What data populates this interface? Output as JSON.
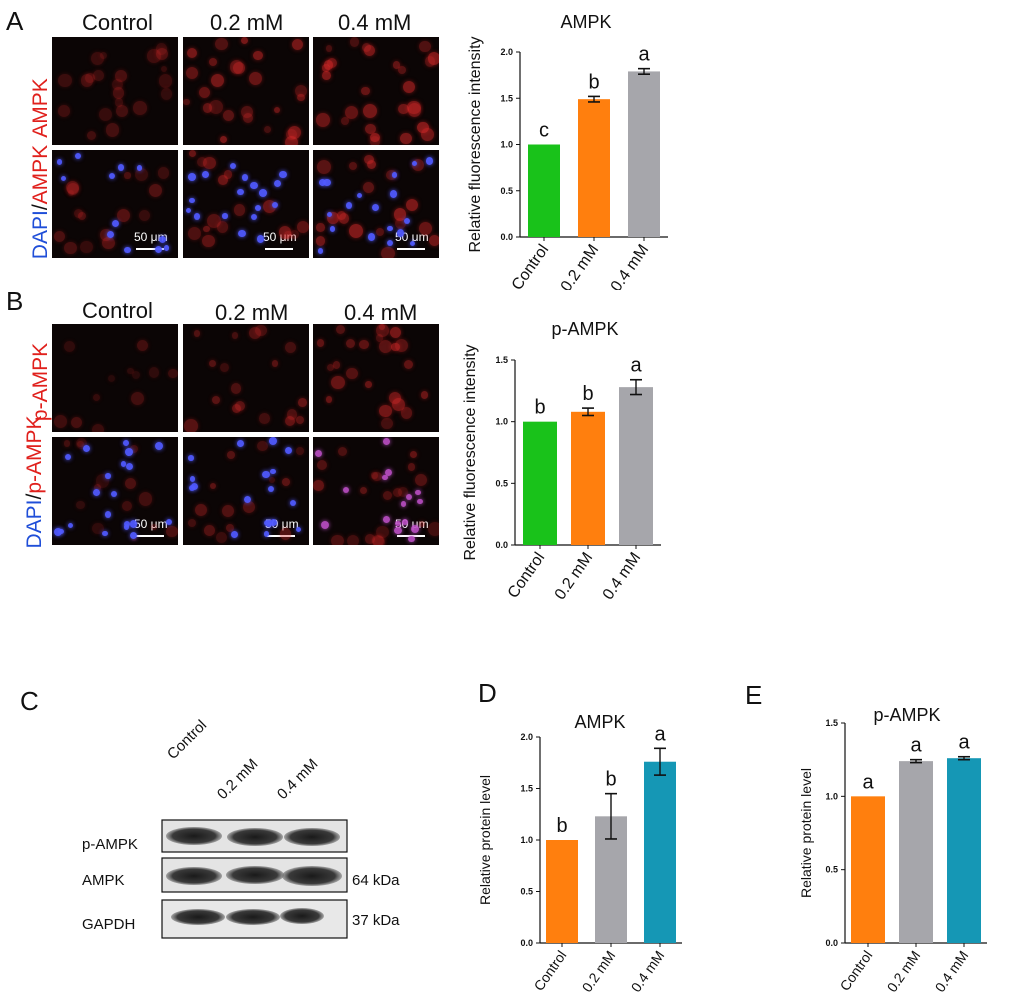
{
  "panels": {
    "A": {
      "letter": "A",
      "columns": [
        "Control",
        "0.2 mM",
        "0.4 mM"
      ],
      "row_labels": {
        "row1": {
          "text": "AMPK",
          "color": "#e0201c"
        },
        "row2_a": {
          "text": "DAPI",
          "color": "#1f4ed8"
        },
        "row2_sep": "/",
        "row2_b": {
          "text": "AMPK",
          "color": "#e0201c"
        }
      },
      "scale": "50 μm"
    },
    "B": {
      "letter": "B",
      "columns": [
        "Control",
        "0.2 mM",
        "0.4 mM"
      ],
      "row_labels": {
        "row1": {
          "text": "p-AMPK",
          "color": "#e0201c"
        },
        "row2_a": {
          "text": "DAPI",
          "color": "#1f4ed8"
        },
        "row2_sep": "/",
        "row2_b": {
          "text": "p-AMPK",
          "color": "#e0201c"
        }
      },
      "scale": "50 μm"
    },
    "C": {
      "letter": "C",
      "lanes": [
        "Control",
        "0.2 mM",
        "0.4 mM"
      ],
      "rows": [
        "p-AMPK",
        "AMPK",
        "GAPDH"
      ],
      "kda": [
        "64 kDa",
        "37 kDa"
      ]
    },
    "D": {
      "letter": "D"
    },
    "E": {
      "letter": "E"
    }
  },
  "colors": {
    "green": "#19c21a",
    "orange": "#ff7f0e",
    "gray": "#a6a6ab",
    "teal": "#1597b5",
    "black": "#000000"
  },
  "chart_data": [
    {
      "id": "chartA",
      "type": "bar",
      "title": "AMPK",
      "ylabel": "Relative fluorescence intensity",
      "categories": [
        "Control",
        "0.2 mM",
        "0.4 mM"
      ],
      "values": [
        1.0,
        1.49,
        1.79
      ],
      "errors": [
        0,
        0.03,
        0.03
      ],
      "sig_labels": [
        "c",
        "b",
        "a"
      ],
      "bar_colors": [
        "#19c21a",
        "#ff7f0e",
        "#a6a6ab"
      ],
      "ylim": [
        0,
        2.0
      ],
      "yticks": [
        "0.0",
        "0.5",
        "1.0",
        "1.5",
        "2.0"
      ],
      "ytick_values": [
        0,
        0.5,
        1.0,
        1.5,
        2.0
      ]
    },
    {
      "id": "chartB",
      "type": "bar",
      "title": "p-AMPK",
      "ylabel": "Relative fluorescence intensity",
      "categories": [
        "Control",
        "0.2 mM",
        "0.4 mM"
      ],
      "values": [
        1.0,
        1.08,
        1.28
      ],
      "errors": [
        0,
        0.03,
        0.06
      ],
      "sig_labels": [
        "b",
        "b",
        "a"
      ],
      "bar_colors": [
        "#19c21a",
        "#ff7f0e",
        "#a6a6ab"
      ],
      "ylim": [
        0,
        1.5
      ],
      "yticks": [
        "0.0",
        "0.5",
        "1.0",
        "1.5"
      ],
      "ytick_values": [
        0,
        0.5,
        1.0,
        1.5
      ]
    },
    {
      "id": "chartD",
      "type": "bar",
      "title": "AMPK",
      "ylabel": "Relative protein level",
      "categories": [
        "Control",
        "0.2 mM",
        "0.4 mM"
      ],
      "values": [
        1.0,
        1.23,
        1.76
      ],
      "errors": [
        0,
        0.22,
        0.13
      ],
      "sig_labels": [
        "b",
        "b",
        "a"
      ],
      "bar_colors": [
        "#ff7f0e",
        "#a6a6ab",
        "#1597b5"
      ],
      "ylim": [
        0,
        2.0
      ],
      "yticks": [
        "0.0",
        "0.5",
        "1.0",
        "1.5",
        "2.0"
      ],
      "ytick_values": [
        0,
        0.5,
        1.0,
        1.5,
        2.0
      ]
    },
    {
      "id": "chartE",
      "type": "bar",
      "title": "p-AMPK",
      "ylabel": "Relative protein level",
      "categories": [
        "Control",
        "0.2 mM",
        "0.4 mM"
      ],
      "values": [
        1.0,
        1.24,
        1.26
      ],
      "errors": [
        0,
        0.01,
        0.01
      ],
      "sig_labels": [
        "a",
        "a",
        "a"
      ],
      "bar_colors": [
        "#ff7f0e",
        "#a6a6ab",
        "#1597b5"
      ],
      "ylim": [
        0,
        1.5
      ],
      "yticks": [
        "0.0",
        "0.5",
        "1.0",
        "1.5"
      ],
      "ytick_values": [
        0,
        0.5,
        1.0,
        1.5
      ]
    }
  ]
}
